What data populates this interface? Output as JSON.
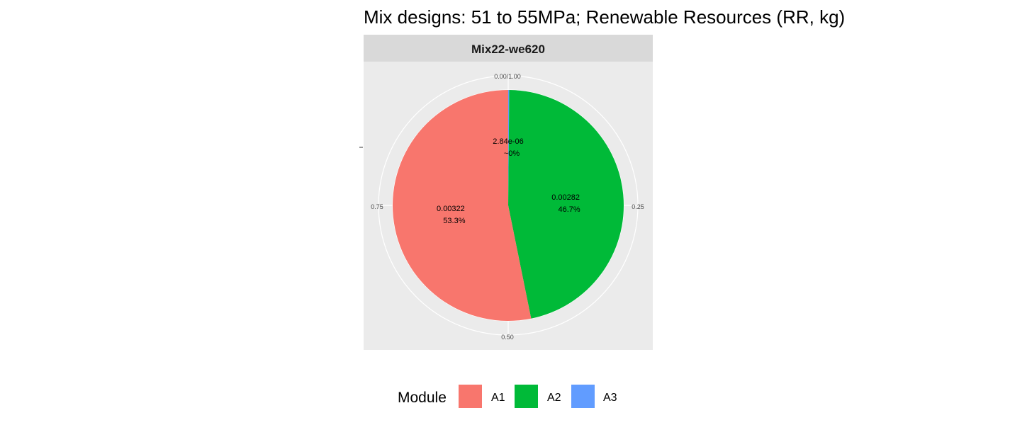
{
  "chart_data": {
    "type": "pie",
    "title": "Mix designs: 51 to 55MPa; Renewable Resources (RR, kg)",
    "facet": "Mix22-we620",
    "theta_ticks": [
      "0.00/1.00",
      "0.25",
      "0.50",
      "0.75"
    ],
    "slices": [
      {
        "module": "A1",
        "value": 0.00322,
        "percent": "53.3%",
        "value_label": "0.00322",
        "color": "#F8766D"
      },
      {
        "module": "A2",
        "value": 0.00282,
        "percent": "46.7%",
        "value_label": "0.00282",
        "color": "#00BA38"
      },
      {
        "module": "A3",
        "value": 2.84e-06,
        "percent": "~0%",
        "value_label": "2.84e-06",
        "color": "#619CFF"
      }
    ],
    "legend": {
      "title": "Module",
      "position": "bottom",
      "items": [
        "A1",
        "A2",
        "A3"
      ]
    },
    "colors": {
      "panel_background": "#EBEBEB",
      "strip_background": "#D9D9D9",
      "grid": "#FFFFFF"
    }
  }
}
